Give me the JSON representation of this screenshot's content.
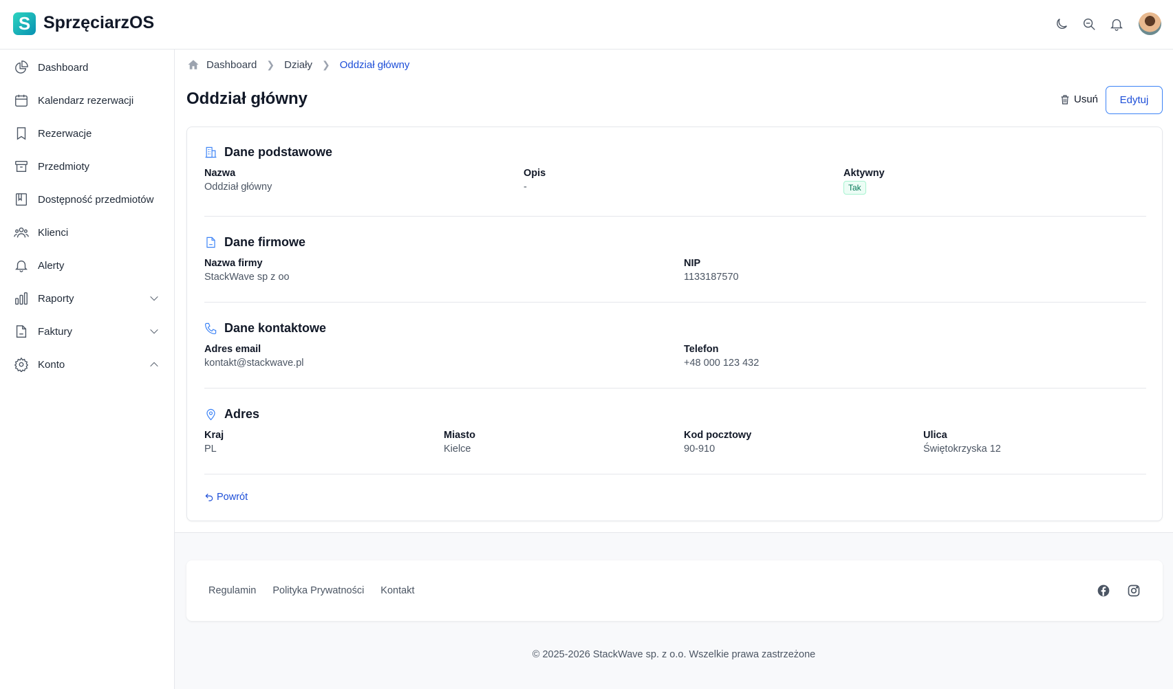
{
  "app": {
    "logo_letter": "S",
    "title": "SprzęciarzOS"
  },
  "header_icons": [
    "moon-icon",
    "zoom-out-icon",
    "bell-icon",
    "avatar"
  ],
  "sidebar": {
    "items": [
      {
        "label": "Dashboard",
        "icon": "pie-chart-icon"
      },
      {
        "label": "Kalendarz rezerwacji",
        "icon": "calendar-icon"
      },
      {
        "label": "Rezerwacje",
        "icon": "bookmark-icon"
      },
      {
        "label": "Przedmioty",
        "icon": "archive-icon"
      },
      {
        "label": "Dostępność przedmiotów",
        "icon": "book-icon"
      },
      {
        "label": "Klienci",
        "icon": "users-icon"
      },
      {
        "label": "Alerty",
        "icon": "bell-icon"
      },
      {
        "label": "Raporty",
        "icon": "bar-chart-icon",
        "expandable": "collapsed"
      },
      {
        "label": "Faktury",
        "icon": "document-icon",
        "expandable": "collapsed"
      },
      {
        "label": "Konto",
        "icon": "gear-icon",
        "expandable": "expanded"
      }
    ]
  },
  "breadcrumb": [
    "Dashboard",
    "Działy",
    "Oddział główny"
  ],
  "page": {
    "title": "Oddział główny",
    "delete_label": "Usuń",
    "edit_label": "Edytuj",
    "back_label": "Powrót"
  },
  "sections": {
    "basic": {
      "title": "Dane podstawowe",
      "name_label": "Nazwa",
      "name_value": "Oddział główny",
      "desc_label": "Opis",
      "desc_value": "-",
      "active_label": "Aktywny",
      "active_value": "Tak"
    },
    "company": {
      "title": "Dane firmowe",
      "company_label": "Nazwa firmy",
      "company_value": "StackWave sp z oo",
      "nip_label": "NIP",
      "nip_value": "1133187570"
    },
    "contact": {
      "title": "Dane kontaktowe",
      "email_label": "Adres email",
      "email_value": "kontakt@stackwave.pl",
      "phone_label": "Telefon",
      "phone_value": "+48 000 123 432"
    },
    "address": {
      "title": "Adres",
      "country_label": "Kraj",
      "country_value": "PL",
      "city_label": "Miasto",
      "city_value": "Kielce",
      "zip_label": "Kod pocztowy",
      "zip_value": "90-910",
      "street_label": "Ulica",
      "street_value": "Świętokrzyska 12"
    }
  },
  "footer": {
    "links": [
      "Regulamin",
      "Polityka Prywatności",
      "Kontakt"
    ],
    "copyright": "© 2025-2026 StackWave sp. z o.o. Wszelkie prawa zastrzeżone"
  },
  "colors": {
    "accent": "#1d4ed8",
    "success": "#047857"
  }
}
